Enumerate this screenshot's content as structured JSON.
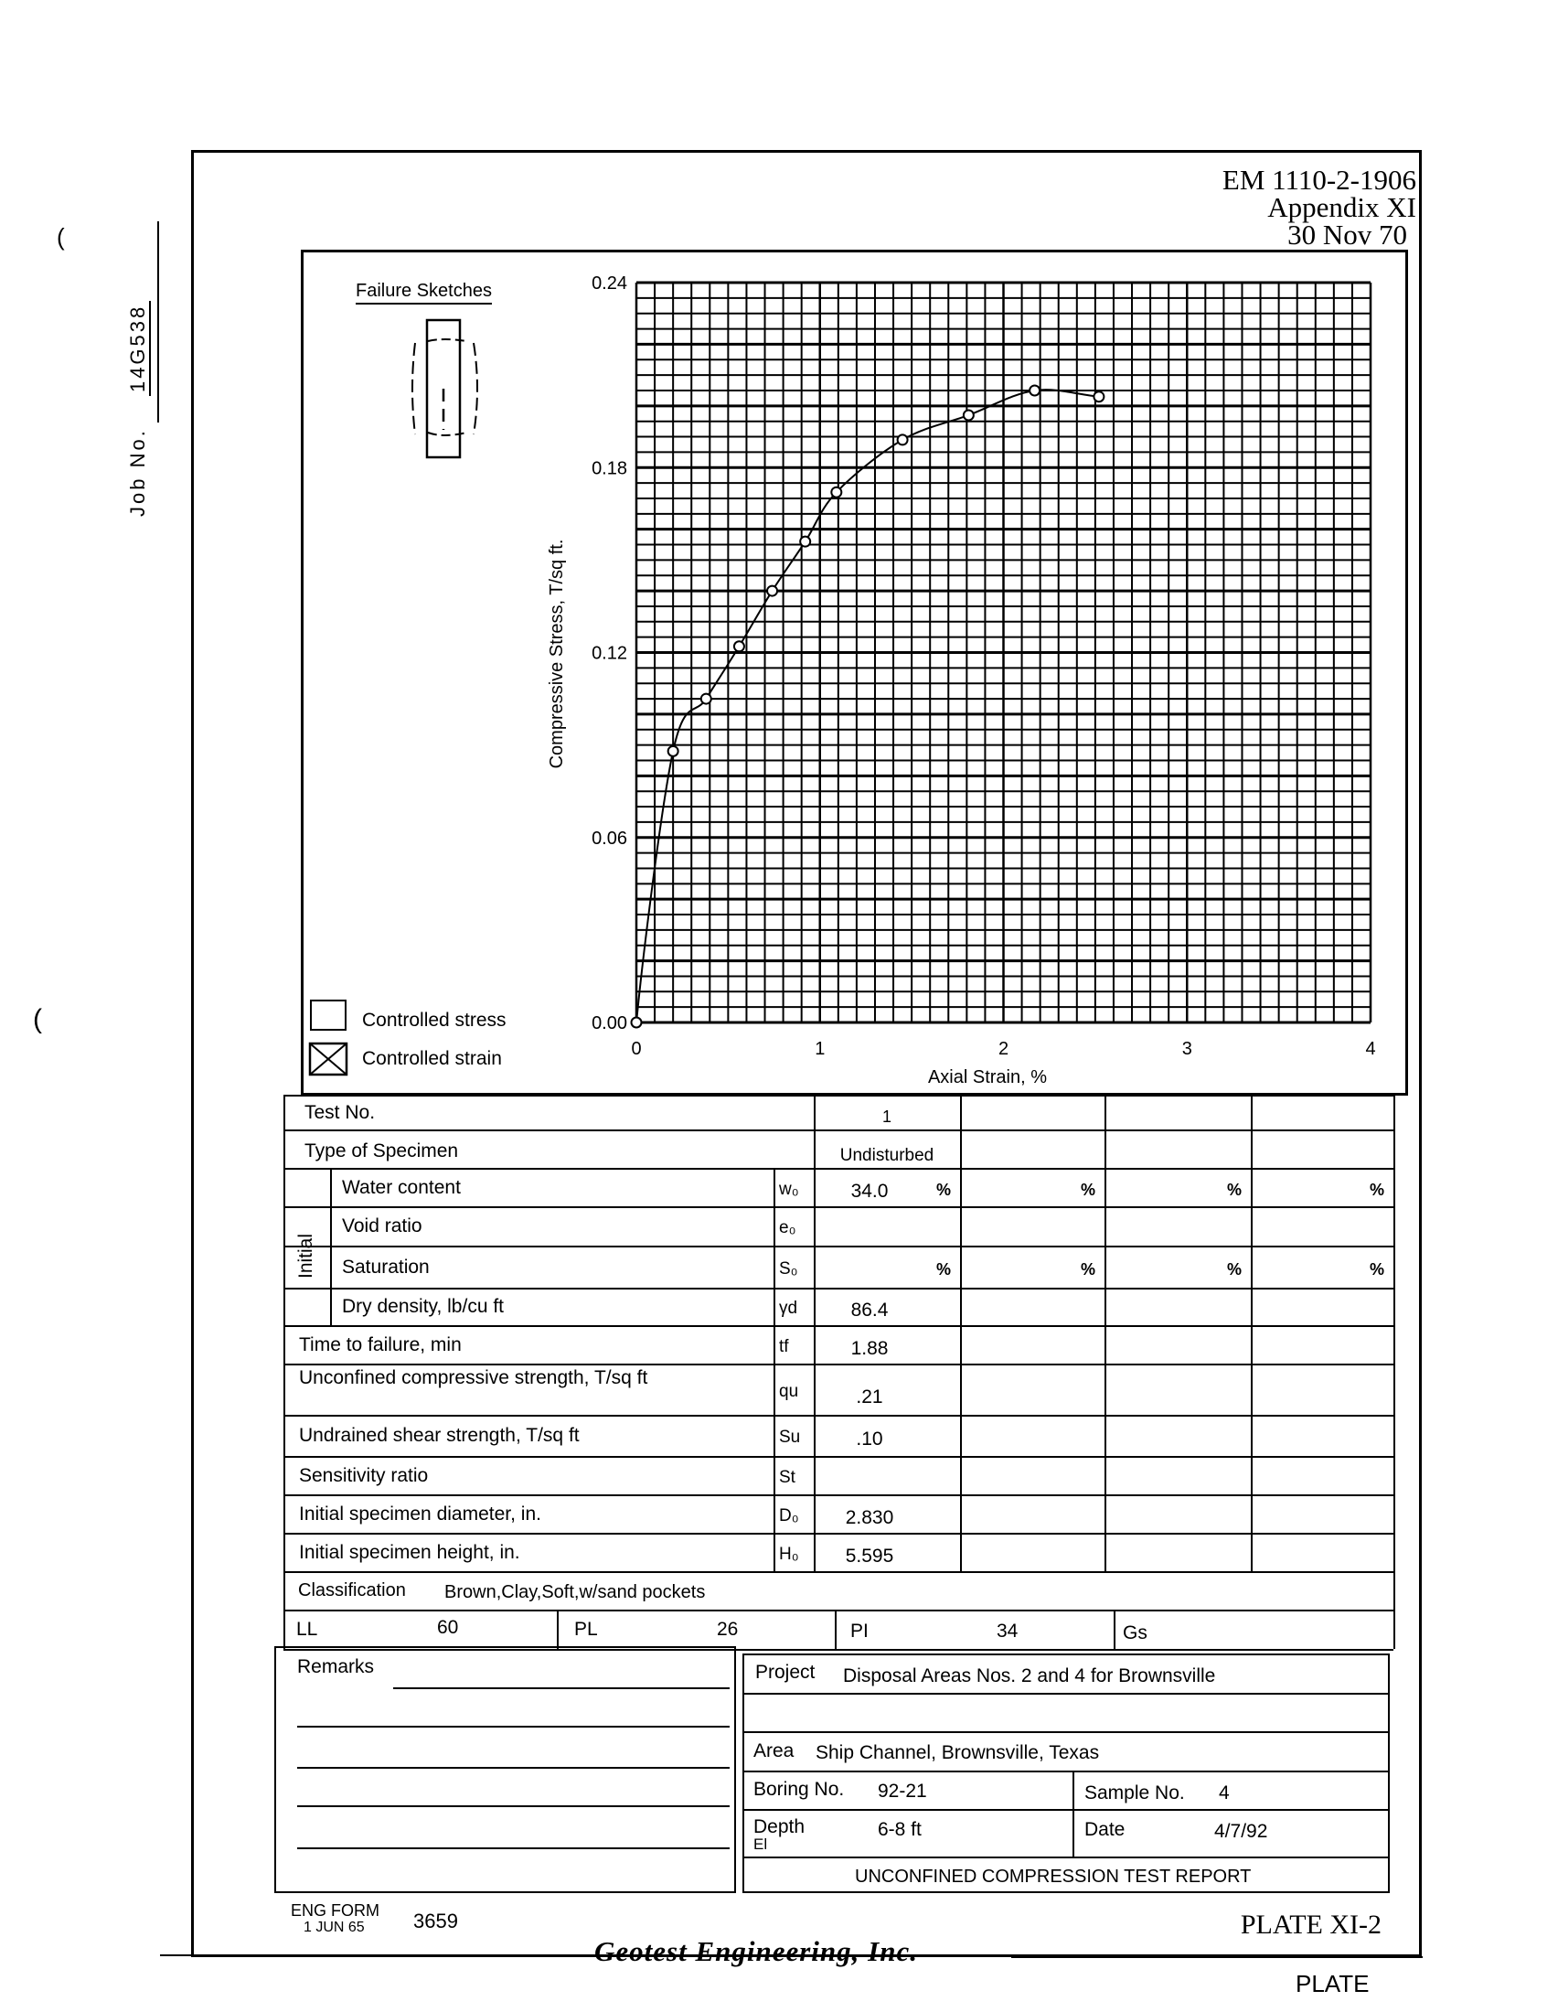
{
  "header": {
    "manual": "EM 1110-2-1906",
    "appendix": "Appendix XI",
    "date": "30 Nov 70"
  },
  "job": {
    "label": "Job No.",
    "value": "14G538"
  },
  "margin_marks": [
    "(",
    "("
  ],
  "failure_sketches": {
    "title": "Failure Sketches"
  },
  "legend": {
    "controlled_stress": {
      "label": "Controlled stress",
      "checked": false
    },
    "controlled_strain": {
      "label": "Controlled strain",
      "checked": true
    }
  },
  "chart_data": {
    "type": "line",
    "xlabel": "Axial Strain, %",
    "ylabel": "Compressive Stress, T/sq ft.",
    "xlim": [
      0,
      4
    ],
    "ylim": [
      0,
      0.24
    ],
    "x_ticks": [
      "0",
      "1",
      "2",
      "3",
      "4"
    ],
    "y_ticks": [
      "0.00",
      "0.06",
      "0.12",
      "0.18",
      "0.24"
    ],
    "grid": true,
    "markers": "open-circle",
    "series": [
      {
        "x": [
          0,
          0.2,
          0.38,
          0.56,
          0.74,
          0.92,
          1.09,
          1.45,
          1.81,
          2.17,
          2.52
        ],
        "y": [
          0,
          0.088,
          0.105,
          0.122,
          0.14,
          0.156,
          0.172,
          0.189,
          0.197,
          0.205,
          0.203
        ]
      }
    ]
  },
  "table": {
    "test_no": {
      "label": "Test No.",
      "values": [
        "1",
        "",
        "",
        ""
      ]
    },
    "type_of_specimen": {
      "label": "Type of Specimen",
      "values": [
        "Undisturbed",
        "",
        "",
        ""
      ]
    },
    "initial_label": "Initial",
    "rows": [
      {
        "label": "Water content",
        "symbol": "w₀",
        "values": [
          "34.0",
          "",
          "",
          ""
        ],
        "unit": "%"
      },
      {
        "label": "Void ratio",
        "symbol": "e₀",
        "values": [
          "",
          "",
          "",
          ""
        ],
        "unit": ""
      },
      {
        "label": "Saturation",
        "symbol": "S₀",
        "values": [
          "",
          "",
          "",
          ""
        ],
        "unit": "%"
      },
      {
        "label": "Dry density, lb/cu ft",
        "symbol": "γd",
        "values": [
          "86.4",
          "",
          "",
          ""
        ],
        "unit": ""
      },
      {
        "label": "Time to failure, min",
        "symbol": "tf",
        "values": [
          "1.88",
          "",
          "",
          ""
        ],
        "unit": ""
      },
      {
        "label": "Unconfined compressive strength, T/sq ft",
        "symbol": "qu",
        "values": [
          ".21",
          "",
          "",
          ""
        ],
        "unit": ""
      },
      {
        "label": "Undrained shear strength, T/sq ft",
        "symbol": "Su",
        "values": [
          ".10",
          "",
          "",
          ""
        ],
        "unit": ""
      },
      {
        "label": "Sensitivity ratio",
        "symbol": "St",
        "values": [
          "",
          "",
          "",
          ""
        ],
        "unit": ""
      },
      {
        "label": "Initial specimen diameter, in.",
        "symbol": "D₀",
        "values": [
          "2.830",
          "",
          "",
          ""
        ],
        "unit": ""
      },
      {
        "label": "Initial specimen height, in.",
        "symbol": "H₀",
        "values": [
          "5.595",
          "",
          "",
          ""
        ],
        "unit": ""
      }
    ],
    "classification": {
      "label": "Classification",
      "value": "Brown,Clay,Soft,w/sand pockets"
    },
    "limits": {
      "ll": {
        "label": "LL",
        "value": "60"
      },
      "pl": {
        "label": "PL",
        "value": "26"
      },
      "pi": {
        "label": "PI",
        "value": "34"
      },
      "gs": {
        "label": "Gs",
        "value": ""
      }
    }
  },
  "remarks": {
    "label": "Remarks"
  },
  "info": {
    "project": {
      "label": "Project",
      "value": "Disposal Areas Nos. 2 and 4 for Brownsville"
    },
    "area": {
      "label": "Area",
      "value": "Ship Channel, Brownsville, Texas"
    },
    "boring": {
      "label": "Boring No.",
      "value": "92-21"
    },
    "sample": {
      "label": "Sample No.",
      "value": "4"
    },
    "depth": {
      "label": "Depth",
      "sublabel": "El",
      "value": "6-8 ft"
    },
    "date": {
      "label": "Date",
      "value": "4/7/92"
    },
    "report_title": "UNCONFINED COMPRESSION TEST REPORT"
  },
  "footer": {
    "form": "ENG FORM",
    "form_date": "1 JUN 65",
    "form_no": "3659",
    "plate": "PLATE XI-2",
    "company": "Geotest Engineering, Inc.",
    "plate_bottom": "PLATE"
  }
}
